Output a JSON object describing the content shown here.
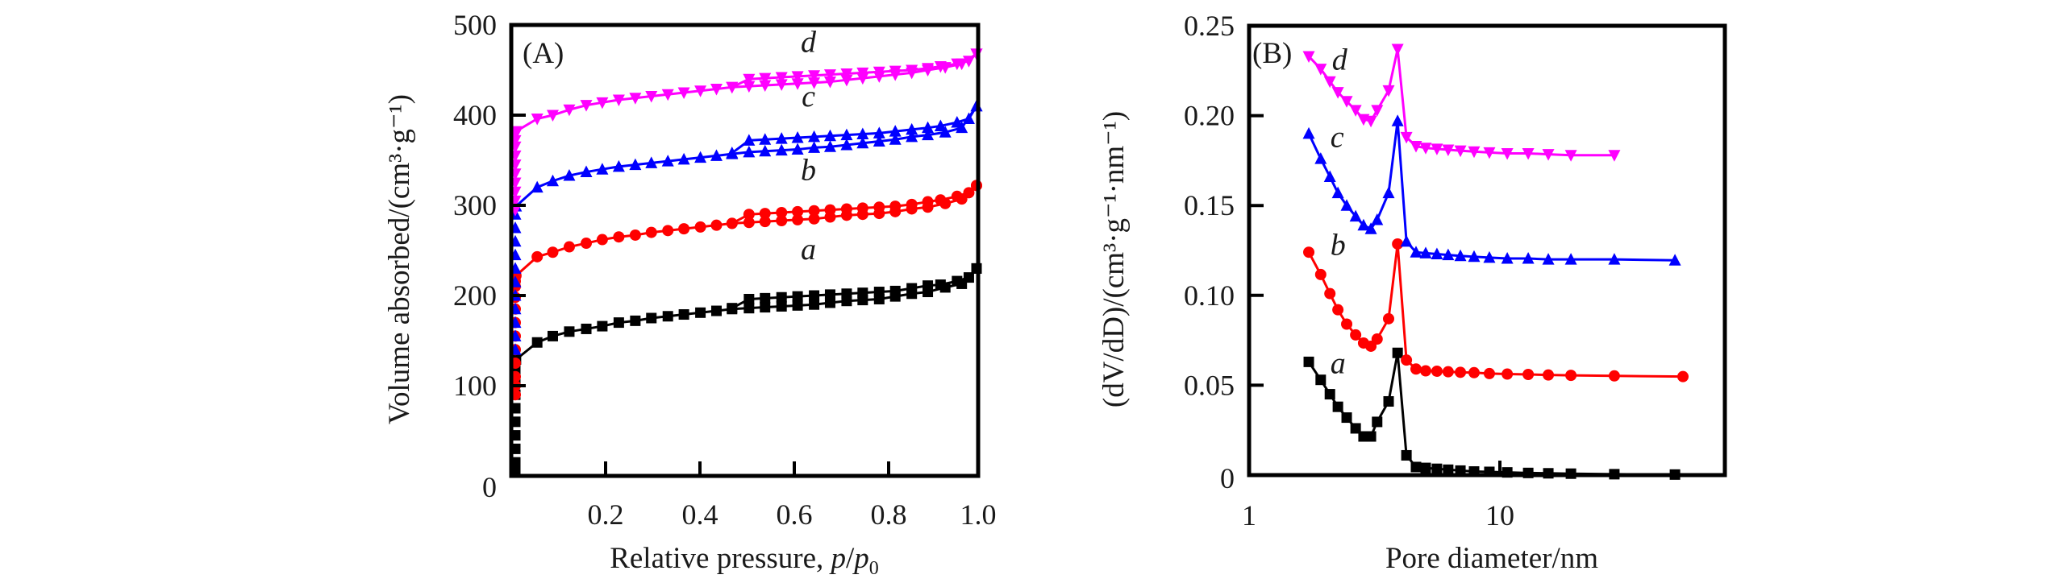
{
  "chart_data": [
    {
      "panel": "A",
      "type": "line",
      "panel_label": "(A)",
      "xlabel": "Relative pressure, p/p0",
      "xlabel_parts": {
        "main": "Relative pressure, ",
        "var": "p",
        "slash": "/",
        "var2": "p",
        "sub": "0"
      },
      "ylabel": "Volume absorbed/(cm³·g⁻¹)",
      "xlim": [
        0,
        1.0
      ],
      "ylim": [
        0,
        500
      ],
      "xticks": [
        0.2,
        0.4,
        0.6,
        0.8,
        1.0
      ],
      "xtick_labels": [
        "0.2",
        "0.4",
        "0.6",
        "0.8",
        "1.0"
      ],
      "yticks": [
        0,
        100,
        200,
        300,
        400,
        500
      ],
      "ytick_labels": [
        "0",
        "100",
        "200",
        "300",
        "400",
        "500"
      ],
      "grid": false,
      "legend": "none (inline italic curve labels)",
      "series": [
        {
          "name": "a",
          "color": "#000000",
          "marker": "square",
          "label_at": [
            0.63,
            240
          ],
          "adsorption": {
            "x": [
              0.0,
              0.0,
              0.0,
              0.0,
              0.0,
              0.0,
              0.0,
              0.0,
              0.0,
              0.01,
              0.055,
              0.088,
              0.123,
              0.159,
              0.193,
              0.228,
              0.263,
              0.297,
              0.332,
              0.366,
              0.401,
              0.435,
              0.468,
              0.504,
              0.538,
              0.573,
              0.607,
              0.642,
              0.676,
              0.711,
              0.745,
              0.78,
              0.814,
              0.849,
              0.883,
              0.92,
              0.955,
              1.0
            ],
            "y": [
              5,
              15,
              30,
              45,
              60,
              75,
              90,
              105,
              118,
              129,
              148,
              155,
              160,
              163,
              166,
              170,
              172,
              175,
              177,
              179,
              181,
              183,
              185,
              186,
              187,
              188,
              189,
              190,
              192,
              194,
              195,
              196,
              199,
              202,
              204,
              209,
              213,
              230
            ]
          },
          "desorption": {
            "x": [
              1.0,
              0.97,
              0.945,
              0.91,
              0.883,
              0.849,
              0.814,
              0.78,
              0.745,
              0.711,
              0.676,
              0.642,
              0.607,
              0.573,
              0.538,
              0.504,
              0.468
            ],
            "y": [
              230,
              220,
              216,
              212,
              211,
              208,
              205,
              204,
              203,
              202,
              201,
              200,
              199,
              198,
              197,
              196,
              186
            ]
          }
        },
        {
          "name": "b",
          "color": "#ff0000",
          "marker": "circle",
          "label_at": [
            0.63,
            328
          ],
          "adsorption": {
            "x": [
              0.0,
              0.0,
              0.0,
              0.0,
              0.0,
              0.0,
              0.0,
              0.0,
              0.0,
              0.0,
              0.0,
              0.01,
              0.055,
              0.088,
              0.123,
              0.159,
              0.193,
              0.228,
              0.263,
              0.297,
              0.332,
              0.366,
              0.401,
              0.435,
              0.468,
              0.504,
              0.538,
              0.573,
              0.607,
              0.642,
              0.676,
              0.711,
              0.745,
              0.78,
              0.814,
              0.849,
              0.883,
              0.92,
              0.955,
              1.0
            ],
            "y": [
              90,
              100,
              110,
              125,
              140,
              155,
              170,
              185,
              198,
              210,
              216,
              222,
              243,
              248,
              254,
              258,
              262,
              265,
              267,
              270,
              272,
              274,
              276,
              278,
              280,
              281,
              282,
              283,
              284,
              285,
              287,
              289,
              290,
              291,
              293,
              296,
              298,
              302,
              307,
              322
            ]
          },
          "desorption": {
            "x": [
              1.0,
              0.97,
              0.945,
              0.91,
              0.883,
              0.849,
              0.814,
              0.78,
              0.745,
              0.711,
              0.676,
              0.642,
              0.607,
              0.573,
              0.538,
              0.504,
              0.468
            ],
            "y": [
              322,
              314,
              310,
              306,
              304,
              301,
              299,
              298,
              297,
              296,
              295,
              294,
              293,
              292,
              291,
              290,
              280
            ]
          }
        },
        {
          "name": "c",
          "color": "#0000ff",
          "marker": "triangle-up",
          "label_at": [
            0.63,
            410
          ],
          "adsorption": {
            "x": [
              0.0,
              0.0,
              0.0,
              0.0,
              0.0,
              0.0,
              0.0,
              0.0,
              0.0,
              0.0,
              0.0,
              0.01,
              0.055,
              0.088,
              0.123,
              0.159,
              0.193,
              0.228,
              0.263,
              0.297,
              0.332,
              0.366,
              0.401,
              0.435,
              0.468,
              0.504,
              0.538,
              0.573,
              0.607,
              0.642,
              0.676,
              0.711,
              0.745,
              0.78,
              0.814,
              0.849,
              0.883,
              0.92,
              0.955,
              1.0
            ],
            "y": [
              140,
              155,
              170,
              185,
              200,
              215,
              230,
              245,
              260,
              275,
              290,
              299,
              320,
              327,
              333,
              337,
              340,
              343,
              345,
              347,
              349,
              351,
              353,
              355,
              357,
              359,
              360,
              361,
              362,
              364,
              365,
              367,
              369,
              371,
              373,
              376,
              378,
              381,
              386,
              410
            ]
          },
          "desorption": {
            "x": [
              1.0,
              0.97,
              0.945,
              0.91,
              0.883,
              0.849,
              0.814,
              0.78,
              0.745,
              0.711,
              0.676,
              0.642,
              0.607,
              0.573,
              0.538,
              0.504,
              0.468
            ],
            "y": [
              410,
              396,
              392,
              388,
              386,
              384,
              382,
              380,
              379,
              378,
              377,
              376,
              375,
              374,
              373,
              372,
              358
            ]
          }
        },
        {
          "name": "d",
          "color": "#ff00ff",
          "marker": "triangle-down",
          "label_at": [
            0.63,
            470
          ],
          "adsorption": {
            "x": [
              0.0,
              0.0,
              0.0,
              0.0,
              0.0,
              0.0,
              0.0,
              0.0,
              0.0,
              0.0,
              0.01,
              0.055,
              0.088,
              0.123,
              0.159,
              0.193,
              0.228,
              0.263,
              0.297,
              0.332,
              0.366,
              0.401,
              0.435,
              0.468,
              0.504,
              0.538,
              0.573,
              0.607,
              0.642,
              0.676,
              0.711,
              0.745,
              0.78,
              0.814,
              0.849,
              0.883,
              0.92,
              0.955,
              1.0
            ],
            "y": [
              295,
              305,
              315,
              325,
              335,
              345,
              355,
              365,
              372,
              378,
              382,
              396,
              400,
              406,
              411,
              414,
              417,
              419,
              421,
              423,
              425,
              427,
              429,
              431,
              432,
              433,
              434,
              435,
              436,
              437,
              439,
              441,
              443,
              445,
              447,
              450,
              453,
              457,
              468
            ]
          },
          "desorption": {
            "x": [
              1.0,
              0.97,
              0.945,
              0.91,
              0.883,
              0.849,
              0.814,
              0.78,
              0.745,
              0.711,
              0.676,
              0.642,
              0.607,
              0.573,
              0.538,
              0.504,
              0.468
            ],
            "y": [
              468,
              460,
              457,
              454,
              452,
              450,
              449,
              448,
              447,
              446,
              445,
              444,
              443,
              442,
              441,
              440,
              431
            ]
          }
        }
      ]
    },
    {
      "panel": "B",
      "type": "line",
      "panel_label": "(B)",
      "xlabel": "Pore diameter/nm",
      "ylabel": "(dV/dD)/(cm³·g⁻¹·nm⁻¹)",
      "xscale": "log",
      "xlim": [
        1,
        79
      ],
      "ylim": [
        0,
        0.25
      ],
      "xticks": [
        1,
        10
      ],
      "xtick_labels": [
        "1",
        "10"
      ],
      "yticks": [
        0,
        0.05,
        0.1,
        0.15,
        0.2,
        0.25
      ],
      "ytick_labels": [
        "0",
        "0.05",
        "0.10",
        "0.15",
        "0.20",
        "0.25"
      ],
      "grid": false,
      "legend": "none (inline italic curve labels)",
      "series": [
        {
          "name": "a",
          "color": "#000000",
          "marker": "square",
          "label_at": [
            1.9,
            0.062
          ],
          "x": [
            1.73,
            1.93,
            2.1,
            2.26,
            2.45,
            2.66,
            2.86,
            3.06,
            3.24,
            3.6,
            3.91,
            4.24,
            4.63,
            5.06,
            5.61,
            6.22,
            6.96,
            7.89,
            9.08,
            10.7,
            12.97,
            15.6,
            19.2,
            28.6,
            49.9
          ],
          "y": [
            0.063,
            0.053,
            0.045,
            0.038,
            0.032,
            0.026,
            0.0215,
            0.0215,
            0.0296,
            0.041,
            0.068,
            0.011,
            0.0045,
            0.004,
            0.0035,
            0.003,
            0.0025,
            0.002,
            0.0018,
            0.0015,
            0.0012,
            0.001,
            0.0008,
            0.0005,
            0.0003
          ]
        },
        {
          "name": "b",
          "color": "#ff0000",
          "marker": "circle",
          "label_at": [
            1.9,
            0.128
          ],
          "x": [
            1.73,
            1.93,
            2.1,
            2.26,
            2.45,
            2.66,
            2.86,
            3.06,
            3.24,
            3.6,
            3.91,
            4.24,
            4.63,
            5.06,
            5.61,
            6.22,
            6.96,
            7.89,
            9.08,
            10.7,
            12.97,
            15.6,
            19.2,
            28.6,
            53.7
          ],
          "y": [
            0.124,
            0.1116,
            0.101,
            0.092,
            0.084,
            0.078,
            0.0735,
            0.0717,
            0.0757,
            0.087,
            0.1286,
            0.064,
            0.059,
            0.058,
            0.0578,
            0.0575,
            0.0572,
            0.057,
            0.0565,
            0.0562,
            0.056,
            0.0557,
            0.0555,
            0.0552,
            0.0548
          ]
        },
        {
          "name": "c",
          "color": "#0000ff",
          "marker": "triangle-up",
          "label_at": [
            1.9,
            0.188
          ],
          "x": [
            1.73,
            1.93,
            2.1,
            2.26,
            2.45,
            2.66,
            2.86,
            3.06,
            3.24,
            3.6,
            3.91,
            4.24,
            4.63,
            5.06,
            5.61,
            6.22,
            6.96,
            7.89,
            9.08,
            10.7,
            12.97,
            15.6,
            19.2,
            28.6,
            49.9
          ],
          "y": [
            0.19,
            0.176,
            0.166,
            0.157,
            0.15,
            0.144,
            0.139,
            0.137,
            0.142,
            0.157,
            0.197,
            0.13,
            0.124,
            0.1235,
            0.123,
            0.1225,
            0.122,
            0.1215,
            0.121,
            0.1205,
            0.1205,
            0.12,
            0.12,
            0.12,
            0.1195
          ]
        },
        {
          "name": "d",
          "color": "#ff00ff",
          "marker": "triangle-down",
          "label_at": [
            1.93,
            0.231
          ],
          "x": [
            1.73,
            1.93,
            2.1,
            2.26,
            2.45,
            2.66,
            2.86,
            3.06,
            3.24,
            3.6,
            3.91,
            4.24,
            4.63,
            5.06,
            5.61,
            6.22,
            6.96,
            7.89,
            9.08,
            10.7,
            12.97,
            15.6,
            19.2,
            28.6
          ],
          "y": [
            0.233,
            0.226,
            0.219,
            0.213,
            0.208,
            0.203,
            0.198,
            0.197,
            0.203,
            0.214,
            0.237,
            0.188,
            0.183,
            0.182,
            0.1815,
            0.181,
            0.1805,
            0.18,
            0.1795,
            0.179,
            0.179,
            0.1785,
            0.178,
            0.178
          ]
        }
      ]
    }
  ]
}
